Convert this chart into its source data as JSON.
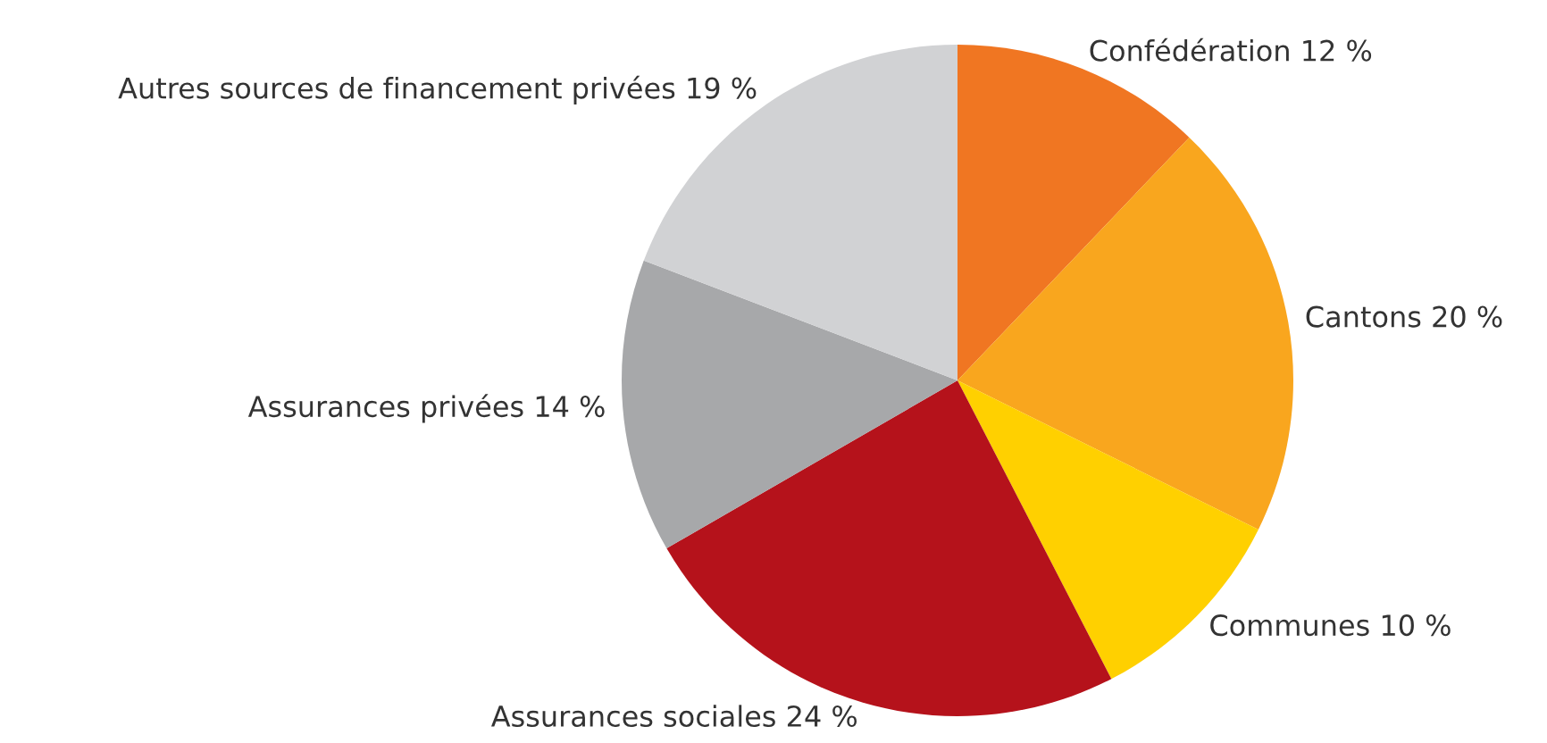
{
  "chart_data": {
    "type": "pie",
    "categories": [
      "Confédération",
      "Cantons",
      "Communes",
      "Assurances sociales",
      "Assurances privées",
      "Autres sources de financement privées"
    ],
    "values": [
      12,
      20,
      10,
      24,
      14,
      19
    ],
    "value_labels": [
      "12 %",
      "20 %",
      "10 %",
      "24 %",
      "14 %",
      "19 %"
    ],
    "colors": [
      "#f07622",
      "#f9a61e",
      "#ffd000",
      "#b5121b",
      "#a7a8aa",
      "#d1d2d4"
    ]
  }
}
